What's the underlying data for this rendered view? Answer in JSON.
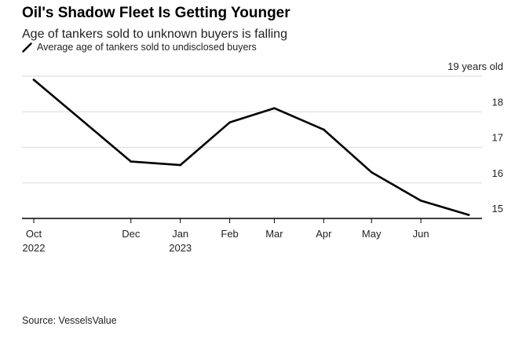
{
  "title": "Oil's Shadow Fleet Is Getting Younger",
  "subtitle": "Age of tankers sold to unknown buyers is falling",
  "source": "Source: VesselsValue",
  "colors": {
    "line": "#000000",
    "grid": "#d9d9d9",
    "axis": "#000000"
  },
  "chart_data": {
    "type": "line",
    "title": "Oil's Shadow Fleet Is Getting Younger",
    "subtitle": "Age of tankers sold to unknown buyers is falling",
    "legend_position": "top-left",
    "grid": true,
    "y_axis_side": "right",
    "ylim": [
      15,
      19
    ],
    "yticks": [
      {
        "value": 19,
        "label": "19 years old"
      },
      {
        "value": 18,
        "label": "18"
      },
      {
        "value": 17,
        "label": "17"
      },
      {
        "value": 16,
        "label": "16"
      },
      {
        "value": 15,
        "label": "15"
      }
    ],
    "xticks": [
      {
        "x": "2022-10-01",
        "label": "Oct",
        "sublabel": "2022"
      },
      {
        "x": "2022-12-01",
        "label": "Dec",
        "sublabel": ""
      },
      {
        "x": "2023-01-01",
        "label": "Jan",
        "sublabel": "2023"
      },
      {
        "x": "2023-02-01",
        "label": "Feb",
        "sublabel": ""
      },
      {
        "x": "2023-03-01",
        "label": "Mar",
        "sublabel": ""
      },
      {
        "x": "2023-04-01",
        "label": "Apr",
        "sublabel": ""
      },
      {
        "x": "2023-05-01",
        "label": "May",
        "sublabel": ""
      },
      {
        "x": "2023-06-01",
        "label": "Jun",
        "sublabel": ""
      }
    ],
    "xlim": [
      "2022-10-01",
      "2023-07-01"
    ],
    "series": [
      {
        "name": "Average age of tankers sold to undisclosed buyers",
        "color": "#000000",
        "points": [
          {
            "x": "2022-10-01",
            "y": 18.9
          },
          {
            "x": "2022-12-01",
            "y": 16.6
          },
          {
            "x": "2023-01-01",
            "y": 16.5
          },
          {
            "x": "2023-02-01",
            "y": 17.7
          },
          {
            "x": "2023-03-01",
            "y": 18.1
          },
          {
            "x": "2023-04-01",
            "y": 17.5
          },
          {
            "x": "2023-05-01",
            "y": 16.3
          },
          {
            "x": "2023-06-01",
            "y": 15.5
          },
          {
            "x": "2023-07-01",
            "y": 15.1
          }
        ]
      }
    ]
  }
}
